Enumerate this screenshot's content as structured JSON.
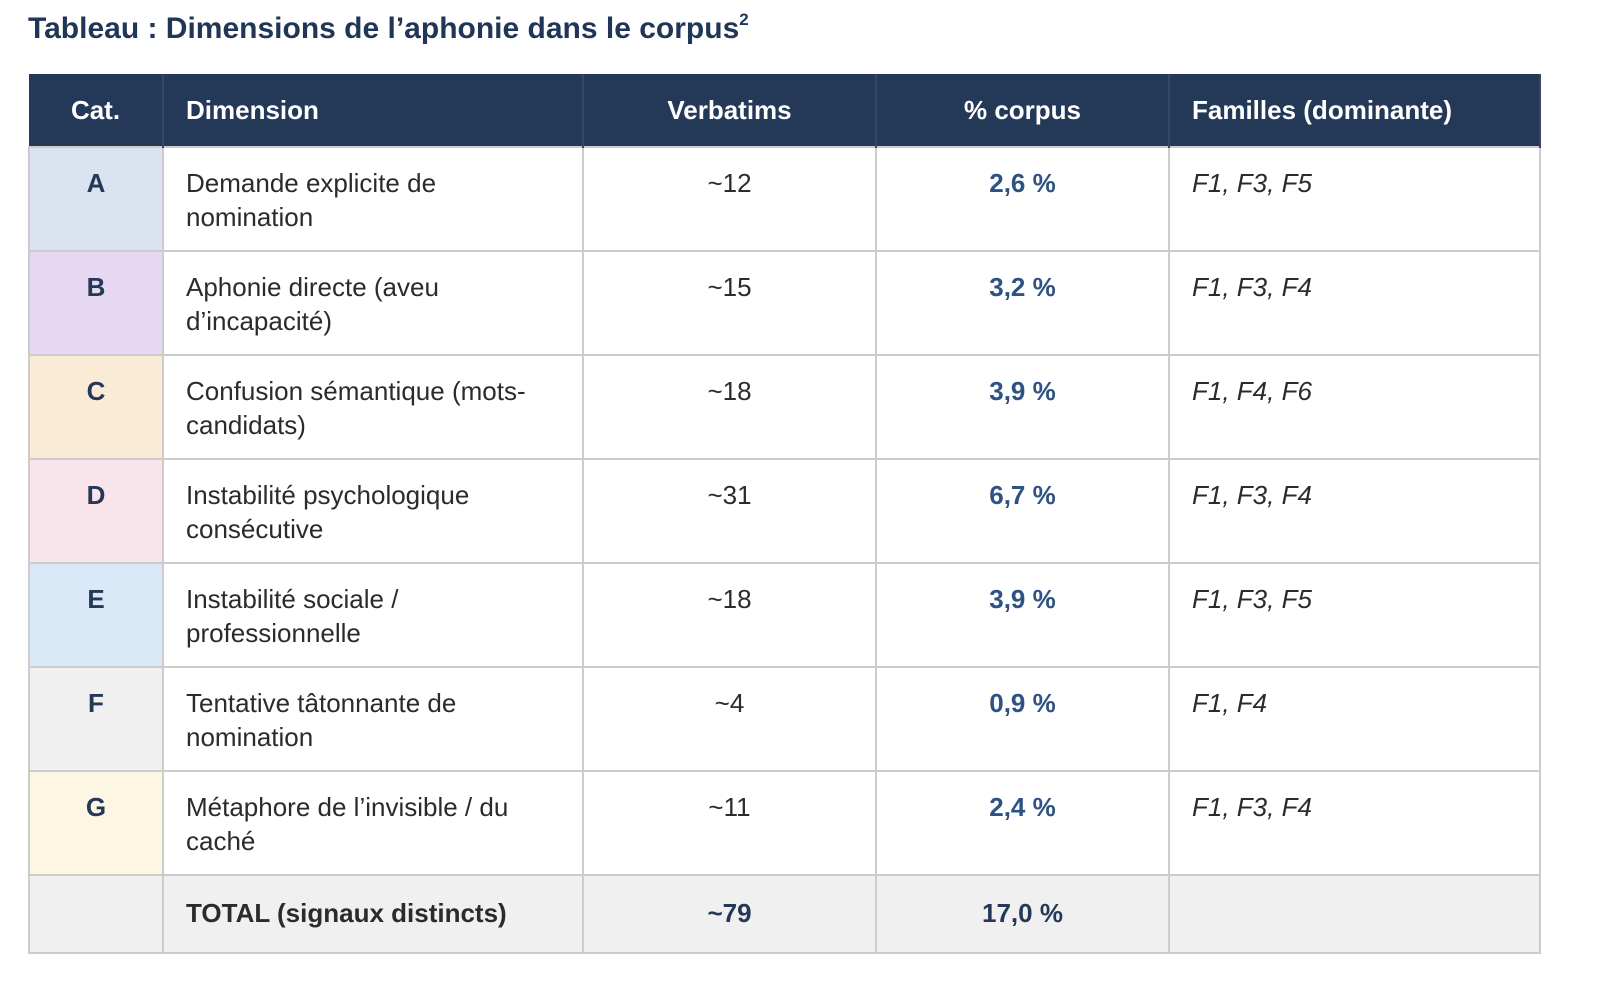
{
  "title": "Tableau : Dimensions de l’aphonie dans le corpus",
  "title_footnote": "2",
  "columns": [
    "Cat.",
    "Dimension",
    "Verbatims",
    "% corpus",
    "Familles (dominante)"
  ],
  "colors": {
    "header_bg": "#243858",
    "title": "#1f3656",
    "percent": "#2e5283"
  },
  "rows": [
    {
      "cat": "A",
      "dimension": "Demande explicite de nomination",
      "verbatims": "~12",
      "percent": "2,6 %",
      "families": "F1, F3, F5",
      "color": "#dae3ef"
    },
    {
      "cat": "B",
      "dimension": "Aphonie directe (aveu d’incapacité)",
      "verbatims": "~15",
      "percent": "3,2 %",
      "families": "F1, F3, F4",
      "color": "#e6d8f2"
    },
    {
      "cat": "C",
      "dimension": "Confusion sémantique (mots-candidats)",
      "verbatims": "~18",
      "percent": "3,9 %",
      "families": "F1, F4, F6",
      "color": "#f9ebd5"
    },
    {
      "cat": "D",
      "dimension": "Instabilité psychologique consécutive",
      "verbatims": "~31",
      "percent": "6,7 %",
      "families": "F1, F3, F4",
      "color": "#f9e4ec"
    },
    {
      "cat": "E",
      "dimension": "Instabilité sociale / professionnelle",
      "verbatims": "~18",
      "percent": "3,9 %",
      "families": "F1, F3, F5",
      "color": "#dae9f7"
    },
    {
      "cat": "F",
      "dimension": "Tentative tâtonnante de nomination",
      "verbatims": "~4",
      "percent": "0,9 %",
      "families": "F1, F4",
      "color": "#f0f0f0"
    },
    {
      "cat": "G",
      "dimension": "Métaphore de l’invisible / du caché",
      "verbatims": "~11",
      "percent": "2,4 %",
      "families": "F1, F3, F4",
      "color": "#fdf6e2"
    }
  ],
  "total": {
    "label": "TOTAL (signaux distincts)",
    "verbatims": "~79",
    "percent": "17,0 %"
  }
}
